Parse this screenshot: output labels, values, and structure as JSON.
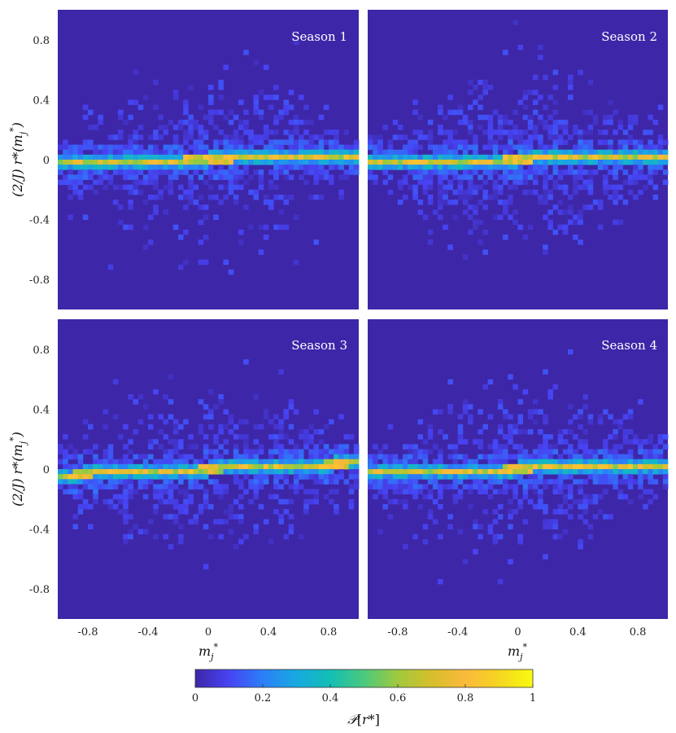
{
  "chart_data": [
    {
      "type": "heatmap",
      "title": "Season 1",
      "xlabel": "",
      "ylabel": "(2/J) r*(m*_j)",
      "xlim": [
        -1,
        1
      ],
      "ylim": [
        -1,
        1
      ],
      "xticks": [],
      "yticks": [
        "0.8",
        "0.4",
        "0",
        "-0.4",
        "-0.8"
      ],
      "centerline": {
        "slope": 0.02,
        "intercept": 0
      },
      "scatter_density": 1.0
    },
    {
      "type": "heatmap",
      "title": "Season 2",
      "xlabel": "",
      "ylabel": "",
      "xlim": [
        -1,
        1
      ],
      "ylim": [
        -1,
        1
      ],
      "xticks": [],
      "yticks": [],
      "centerline": {
        "slope": 0.03,
        "intercept": 0
      },
      "scatter_density": 1.3
    },
    {
      "type": "heatmap",
      "title": "Season 3",
      "xlabel": "m*_j",
      "ylabel": "(2/J) r*(m*_j)",
      "xlim": [
        -1,
        1
      ],
      "ylim": [
        -1,
        1
      ],
      "xticks": [
        "-0.8",
        "-0.4",
        "0",
        "0.4",
        "0.8"
      ],
      "yticks": [
        "0.8",
        "0.4",
        "0",
        "-0.4",
        "-0.8"
      ],
      "centerline": {
        "slope": 0.04,
        "intercept": 0
      },
      "scatter_density": 1.0
    },
    {
      "type": "heatmap",
      "title": "Season 4",
      "xlabel": "m*_j",
      "ylabel": "",
      "xlim": [
        -1,
        1
      ],
      "ylim": [
        -1,
        1
      ],
      "xticks": [
        "-0.8",
        "-0.4",
        "0",
        "0.4",
        "0.8"
      ],
      "yticks": [],
      "centerline": {
        "slope": 0.03,
        "intercept": 0
      },
      "scatter_density": 0.9
    }
  ],
  "colorbar": {
    "label": "P[r*]",
    "ticks": [
      "0",
      "0.2",
      "0.4",
      "0.6",
      "0.8",
      "1"
    ],
    "range": [
      0,
      1
    ],
    "colors": [
      "#3e26a8",
      "#4743f3",
      "#2b7ff8",
      "#18a9e0",
      "#13beb4",
      "#4bc97d",
      "#a1c93d",
      "#d6bf2b",
      "#fbb93c",
      "#f5d521",
      "#f9fb0e"
    ]
  },
  "panel_background": "#3e26a8"
}
